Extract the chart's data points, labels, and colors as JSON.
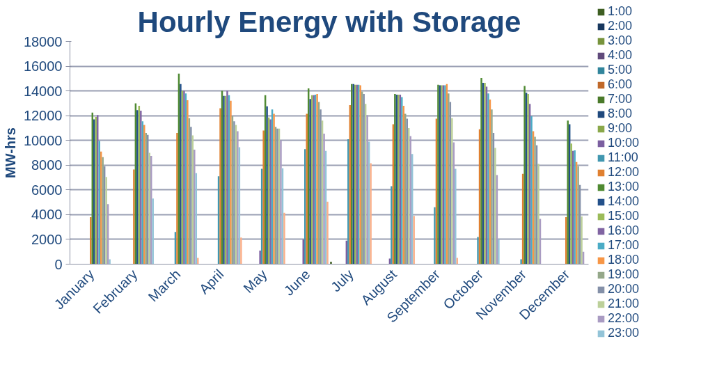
{
  "chart_data": {
    "type": "bar",
    "title": "Hourly Energy with Storage",
    "ylabel": "MW-hrs",
    "categories": [
      "January",
      "February",
      "March",
      "April",
      "May",
      "June",
      "July",
      "August",
      "September",
      "October",
      "November",
      "December"
    ],
    "ylim": [
      0,
      18000
    ],
    "yticks": [
      0,
      2000,
      4000,
      6000,
      8000,
      10000,
      12000,
      14000,
      16000,
      18000
    ],
    "grid": "y",
    "legend": "right",
    "series": [
      {
        "name": "1:00",
        "color": "#3e5e22",
        "values": [
          0,
          0,
          0,
          0,
          0,
          0,
          200,
          0,
          0,
          0,
          0,
          0
        ]
      },
      {
        "name": "2:00",
        "color": "#17375e",
        "values": [
          0,
          0,
          0,
          0,
          0,
          0,
          0,
          0,
          0,
          0,
          0,
          0
        ]
      },
      {
        "name": "3:00",
        "color": "#77933c",
        "values": [
          0,
          0,
          0,
          0,
          0,
          0,
          0,
          0,
          0,
          0,
          0,
          0
        ]
      },
      {
        "name": "4:00",
        "color": "#604a7b",
        "values": [
          0,
          0,
          0,
          0,
          0,
          0,
          0,
          0,
          0,
          0,
          0,
          0
        ]
      },
      {
        "name": "5:00",
        "color": "#31859c",
        "values": [
          0,
          0,
          0,
          0,
          0,
          0,
          0,
          0,
          0,
          0,
          0,
          0
        ]
      },
      {
        "name": "6:00",
        "color": "#c0692a",
        "values": [
          0,
          0,
          0,
          0,
          0,
          0,
          0,
          0,
          0,
          0,
          0,
          0
        ]
      },
      {
        "name": "7:00",
        "color": "#4a7a2a",
        "values": [
          0,
          0,
          0,
          0,
          0,
          0,
          0,
          0,
          0,
          0,
          0,
          0
        ]
      },
      {
        "name": "8:00",
        "color": "#1f497d",
        "values": [
          0,
          0,
          0,
          0,
          0,
          0,
          0,
          0,
          0,
          0,
          0,
          0
        ]
      },
      {
        "name": "9:00",
        "color": "#8aa84a",
        "values": [
          0,
          0,
          0,
          0,
          0,
          0,
          0,
          0,
          0,
          0,
          0,
          0
        ]
      },
      {
        "name": "10:00",
        "color": "#7b5fa0",
        "values": [
          0,
          0,
          0,
          0,
          1100,
          2000,
          1900,
          450,
          0,
          0,
          0,
          0
        ]
      },
      {
        "name": "11:00",
        "color": "#4197b0",
        "values": [
          0,
          0,
          2600,
          7100,
          7700,
          9300,
          10100,
          6300,
          4600,
          2200,
          400,
          0
        ]
      },
      {
        "name": "12:00",
        "color": "#e08030",
        "values": [
          3800,
          7650,
          10600,
          12600,
          10800,
          12150,
          12850,
          11300,
          11750,
          10900,
          7300,
          3800
        ]
      },
      {
        "name": "13:00",
        "color": "#4f8a32",
        "values": [
          12250,
          13000,
          15400,
          14000,
          13650,
          14200,
          14550,
          13750,
          14500,
          15050,
          14400,
          11600
        ]
      },
      {
        "name": "14:00",
        "color": "#23508a",
        "values": [
          11700,
          12450,
          14550,
          13600,
          12750,
          13350,
          14550,
          13700,
          14450,
          14650,
          13850,
          11300
        ]
      },
      {
        "name": "15:00",
        "color": "#9bbb59",
        "values": [
          11900,
          12800,
          14000,
          13600,
          11850,
          13650,
          14500,
          13700,
          14450,
          14650,
          13750,
          9750
        ]
      },
      {
        "name": "16:00",
        "color": "#8064a2",
        "values": [
          12050,
          12400,
          14000,
          14000,
          11700,
          13650,
          14500,
          13700,
          14450,
          14350,
          12950,
          9150
        ]
      },
      {
        "name": "17:00",
        "color": "#4bacc6",
        "values": [
          9950,
          11550,
          13800,
          13650,
          12500,
          13700,
          14500,
          13500,
          14450,
          13800,
          11950,
          9200
        ]
      },
      {
        "name": "18:00",
        "color": "#f79646",
        "values": [
          9100,
          11250,
          13250,
          13200,
          12150,
          13750,
          14450,
          12800,
          14550,
          13300,
          10750,
          8250
        ]
      },
      {
        "name": "19:00",
        "color": "#95a88a",
        "values": [
          8650,
          10600,
          11800,
          11950,
          11100,
          13100,
          13950,
          12150,
          13800,
          12500,
          10300,
          7900
        ]
      },
      {
        "name": "20:00",
        "color": "#8490a8",
        "values": [
          7900,
          10450,
          11100,
          11550,
          10950,
          12500,
          13750,
          11750,
          13100,
          10600,
          9600,
          6400
        ]
      },
      {
        "name": "21:00",
        "color": "#bcd09a",
        "values": [
          7050,
          9000,
          10400,
          11250,
          10950,
          11600,
          12950,
          11000,
          11800,
          9400,
          8100,
          3850
        ]
      },
      {
        "name": "22:00",
        "color": "#a99bc2",
        "values": [
          4850,
          8750,
          9250,
          10750,
          10000,
          10550,
          12050,
          10350,
          9850,
          7200,
          3650,
          1000
        ]
      },
      {
        "name": "23:00",
        "color": "#93c4d8",
        "values": [
          400,
          5300,
          7350,
          9450,
          7750,
          9150,
          9900,
          8900,
          7700,
          2000,
          0,
          0
        ]
      },
      {
        "color": "#fbb08a",
        "values": [
          0,
          0,
          500,
          2150,
          4150,
          5050,
          8150,
          3900,
          500,
          0,
          0,
          0
        ]
      }
    ]
  }
}
